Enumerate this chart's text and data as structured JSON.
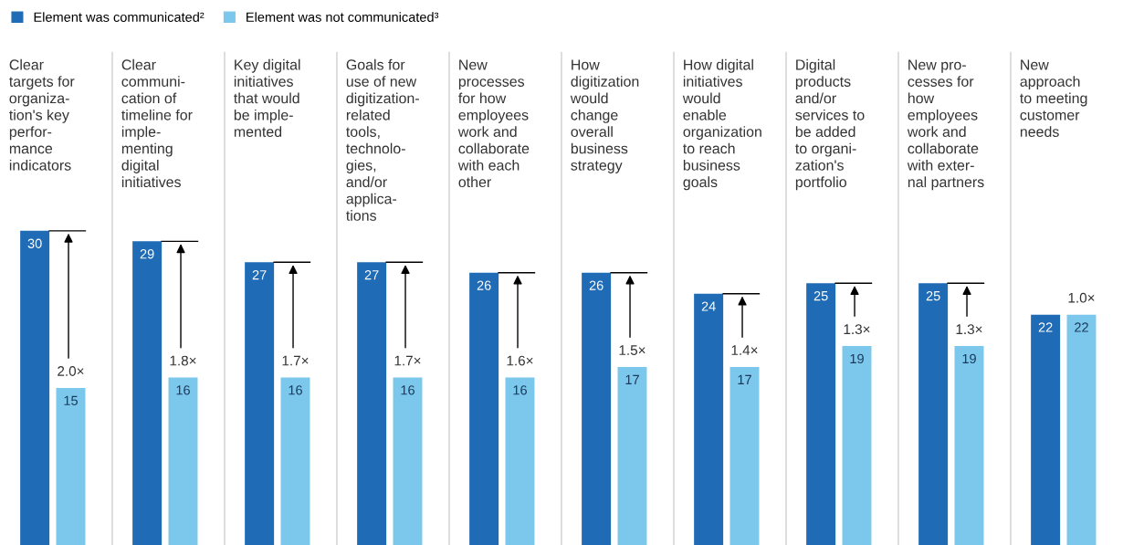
{
  "chart_data": {
    "type": "bar",
    "categories": [
      "Clear\ntargets for\norganiza-\ntion's key\nperfor-\nmance\nindicators",
      "Clear\ncommuni-\ncation of\ntimeline for\nimple-\nmenting\ndigital\ninitiatives",
      "Key digital\ninitiatives\nthat would\nbe imple-\nmented",
      "Goals for\nuse of new\ndigitization-\nrelated\ntools,\ntechnolo-\ngies,\nand/or\napplica-\ntions",
      "New\nprocesses\nfor how\nemployees\nwork and\ncollaborate\nwith each\nother",
      "How\ndigitization\nwould\nchange\noverall\nbusiness\nstrategy",
      "How digital\ninitiatives\nwould\nenable\norganization\nto reach\nbusiness\ngoals",
      "Digital\nproducts\nand/or\nservices to\nbe added\nto organi-\nzation's\nportfolio",
      "New pro-\ncesses for\nhow\nemployees\nwork and\ncollaborate\nwith exter-\nnal partners",
      "New\napproach\nto meeting\ncustomer\nneeds"
    ],
    "series": [
      {
        "name": "Element was communicated²",
        "color": "#1f6bb5",
        "values": [
          30,
          29,
          27,
          27,
          26,
          26,
          24,
          25,
          25,
          22
        ]
      },
      {
        "name": "Element was not communicated³",
        "color": "#7cc8ec",
        "values": [
          15,
          16,
          16,
          16,
          16,
          17,
          17,
          19,
          19,
          22
        ]
      }
    ],
    "data_labels": true,
    "legend": "top left",
    "annotations": [
      "2.0×",
      "1.8×",
      "1.7×",
      "1.7×",
      "1.6×",
      "1.5×",
      "1.4×",
      "1.3×",
      "1.3×",
      "1.0×"
    ]
  }
}
